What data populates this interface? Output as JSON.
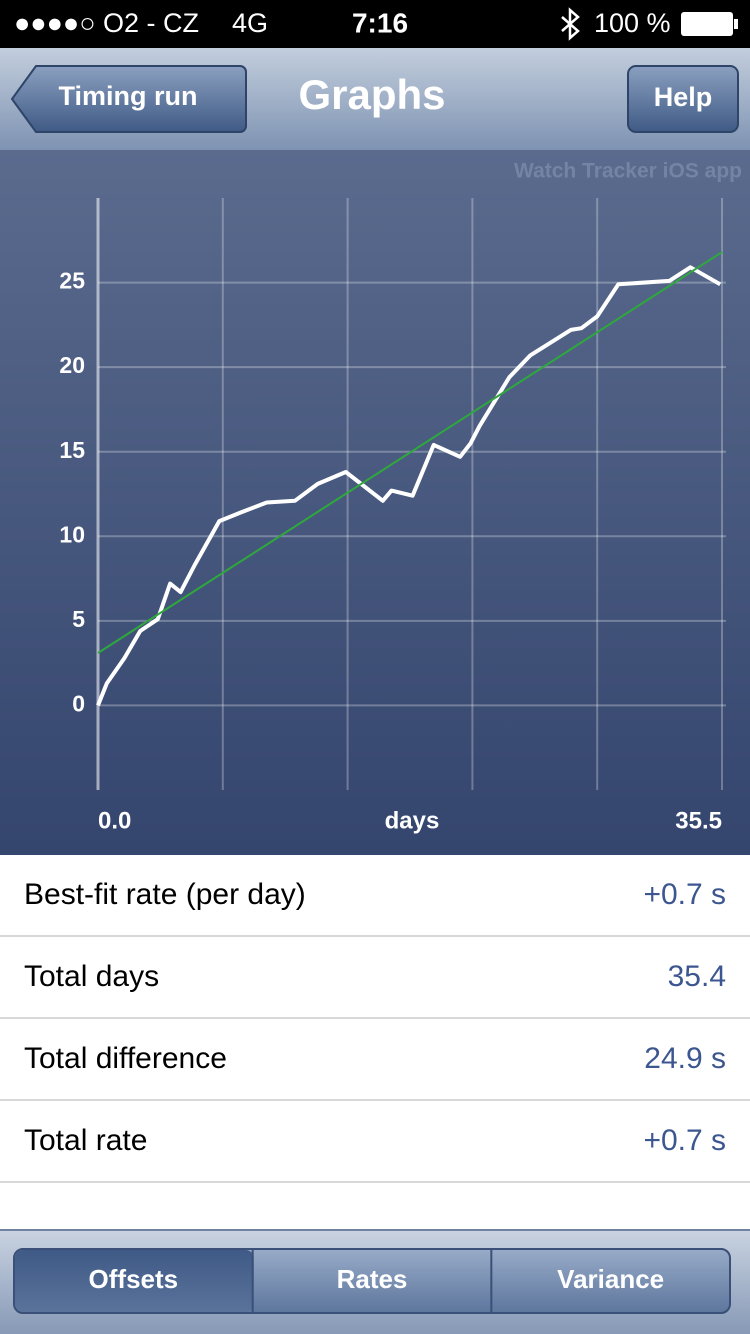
{
  "status_bar": {
    "carrier": "●●●●○ O2 - CZ",
    "network": "4G",
    "time": "7:16",
    "battery": "100 %"
  },
  "nav": {
    "back": "Timing run",
    "title": "Graphs",
    "help": "Help"
  },
  "chart_data": {
    "type": "line",
    "watermark": "Watch Tracker iOS app",
    "xlabel": "days",
    "xlim": [
      0,
      35.5
    ],
    "ylim": [
      -5,
      30
    ],
    "xticks": [
      {
        "value": 0,
        "label": "0.0"
      },
      {
        "value": 35.5,
        "label": "35.5"
      }
    ],
    "xgrid": [
      7.1,
      14.2,
      21.3,
      28.4
    ],
    "yticks": [
      0,
      5,
      10,
      15,
      20,
      25
    ],
    "grid": true,
    "series": [
      {
        "color": "#ffffff",
        "x": [
          0,
          0.5,
          1.5,
          2.4,
          3.4,
          4.1,
          4.7,
          5.5,
          6.9,
          8.1,
          9.6,
          11.2,
          12.5,
          14.1,
          16.2,
          16.7,
          17.9,
          19.1,
          20.6,
          21.2,
          21.7,
          23.4,
          24.6,
          26.9,
          27.5,
          28.4,
          29.6,
          32.5,
          33.7,
          35.4
        ],
        "values": [
          0,
          1.3,
          2.8,
          4.4,
          5.1,
          7.2,
          6.7,
          8.3,
          10.9,
          11.4,
          12.0,
          12.1,
          13.1,
          13.8,
          12.1,
          12.7,
          12.4,
          15.4,
          14.7,
          15.5,
          16.5,
          19.4,
          20.7,
          22.2,
          22.3,
          23.0,
          24.9,
          25.1,
          25.9,
          24.9
        ]
      },
      {
        "color": "#2ea83c",
        "x": [
          0,
          35.5
        ],
        "values": [
          3.1,
          26.8
        ]
      }
    ]
  },
  "stats": [
    {
      "label": "Best-fit rate (per day)",
      "value": "+0.7 s"
    },
    {
      "label": "Total days",
      "value": "35.4"
    },
    {
      "label": "Total difference",
      "value": "24.9 s"
    },
    {
      "label": "Total rate",
      "value": "+0.7 s"
    }
  ],
  "tabs": {
    "items": [
      "Offsets",
      "Rates",
      "Variance"
    ],
    "selected": 0
  }
}
